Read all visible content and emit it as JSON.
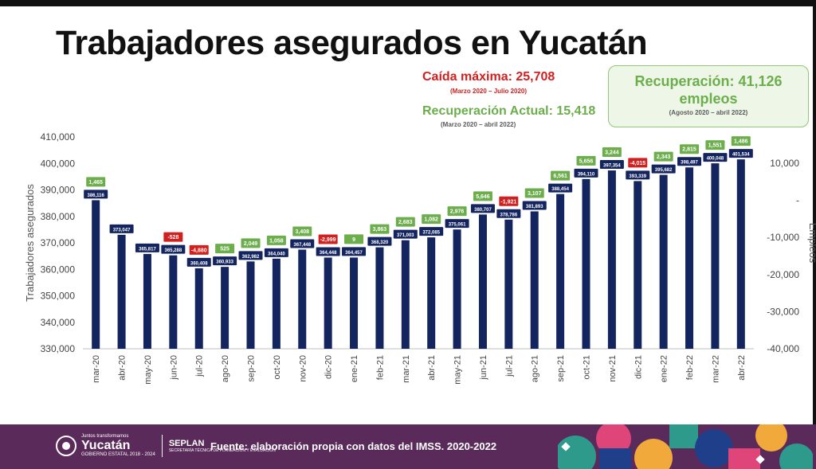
{
  "title": "Trabajadores asegurados en Yucatán",
  "annotations": {
    "drop": "Caída máxima:  25,708",
    "drop_period": "(Marzo 2020 – Julio 2020)",
    "recovery_current": "Recuperación Actual: 15,418",
    "recovery_current_period": "(Marzo 2020 – abril 2022)",
    "recovery_box_line1": "Recuperación: 41,126",
    "recovery_box_line2": "empleos",
    "recovery_box_period": "(Agosto 2020 – abril 2022)"
  },
  "footer": {
    "logo_small": "Juntos transformamos",
    "logo_big": "Yucatán",
    "logo_gov": "GOBIERNO ESTATAL 2018 - 2024",
    "seplan": "SEPLAN",
    "seplan_sub": "SECRETARÍA TÉCNICA DE PLANEACIÓN Y EVALUACIÓN",
    "source": "Fuente: elaboración propia con datos del IMSS. 2020-2022"
  },
  "colors": {
    "bar": "#13245e",
    "positive": "#6cae4c",
    "negative": "#d02020",
    "footer": "#5a2a5a"
  },
  "chart_data": {
    "type": "bar",
    "ylabel": "Trabajadores asegurados",
    "y2label": "Empleos",
    "ylim": [
      330000,
      410000
    ],
    "y2lim": [
      -40000,
      10000
    ],
    "yticks": [
      "330,000",
      "340,000",
      "350,000",
      "360,000",
      "370,000",
      "380,000",
      "390,000",
      "400,000",
      "410,000"
    ],
    "y2ticks": [
      "-40,000",
      "-30,000",
      "-20,000",
      "-10,000",
      "-",
      "10,000"
    ],
    "categories": [
      "mar-20",
      "abr-20",
      "may-20",
      "jun-20",
      "jul-20",
      "ago-20",
      "sep-20",
      "oct-20",
      "nov-20",
      "dic-20",
      "ene-21",
      "feb-21",
      "mar-21",
      "abr-21",
      "may-21",
      "jun-21",
      "jul-21",
      "ago-21",
      "sep-21",
      "oct-21",
      "nov-21",
      "dic-21",
      "ene-22",
      "feb-22",
      "mar-22",
      "abr-22"
    ],
    "series": [
      {
        "name": "Trabajadores asegurados",
        "values": [
          386116,
          373047,
          365817,
          365288,
          360408,
          360933,
          362982,
          364040,
          367448,
          364448,
          364457,
          368320,
          371003,
          372085,
          375061,
          380707,
          378786,
          381893,
          388454,
          394110,
          397354,
          393339,
          395682,
          398497,
          400048,
          401534
        ],
        "labels": [
          "386,116",
          "373,047",
          "365,817",
          "365,288",
          "360,408",
          "360,933",
          "362,982",
          "364,040",
          "367,448",
          "364,448",
          "364,457",
          "368,320",
          "371,003",
          "372,085",
          "375,061",
          "380,707",
          "378,786",
          "381,893",
          "388,454",
          "394,110",
          "397,354",
          "393,339",
          "395,682",
          "398,497",
          "400,048",
          "401,534"
        ]
      },
      {
        "name": "Empleos",
        "values": [
          1465,
          null,
          null,
          -528,
          -4880,
          525,
          2049,
          1058,
          3408,
          -2999,
          9,
          3863,
          2683,
          1082,
          2976,
          5646,
          -1921,
          3107,
          6561,
          5656,
          3244,
          -4015,
          2343,
          2815,
          1551,
          1486
        ],
        "labels": [
          "1,465",
          "",
          "",
          "-528",
          "-4,880",
          "525",
          "2,049",
          "1,058",
          "3,408",
          "-2,999",
          "9",
          "3,863",
          "2,683",
          "1,082",
          "2,976",
          "5,646",
          "-1,921",
          "3,107",
          "6,561",
          "5,656",
          "3,244",
          "-4,015",
          "2,343",
          "2,815",
          "1,551",
          "1,486"
        ]
      }
    ]
  }
}
